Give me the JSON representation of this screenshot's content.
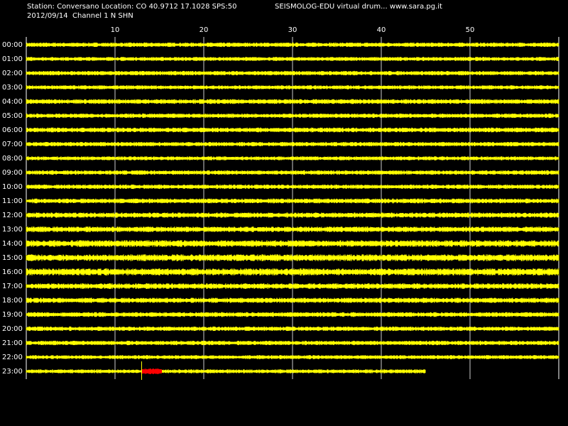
{
  "header": {
    "station_line": "Station: Conversano Location: CO 40.9712 17.1028 SPS:50",
    "app_line": "SEISMOLOG-EDU virtual drum... www.sara.pg.it",
    "date_channel": "2012/09/14  Channel 1 N SHN"
  },
  "minute_ticks": [
    "10",
    "20",
    "30",
    "40",
    "50"
  ],
  "hours": [
    "00:00",
    "01:00",
    "02:00",
    "03:00",
    "04:00",
    "05:00",
    "06:00",
    "07:00",
    "08:00",
    "09:00",
    "10:00",
    "11:00",
    "12:00",
    "13:00",
    "14:00",
    "15:00",
    "16:00",
    "17:00",
    "18:00",
    "19:00",
    "20:00",
    "21:00",
    "22:00",
    "23:00"
  ],
  "colors": {
    "trace": "#ffff00",
    "event": "#ff0000",
    "grid": "#ffffff",
    "background": "#000000"
  },
  "current_row_progress_minutes": 45,
  "event_minutes": [
    13,
    15.3
  ]
}
